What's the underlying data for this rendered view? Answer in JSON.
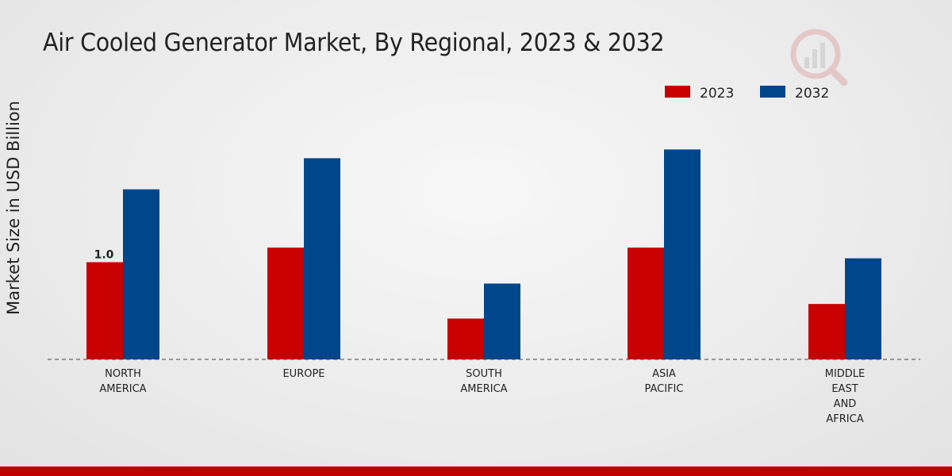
{
  "chart_data": {
    "type": "bar",
    "title": "Air Cooled Generator Market, By Regional, 2023 & 2032",
    "xlabel": "",
    "ylabel": "Market Size in USD Billion",
    "categories": [
      [
        "NORTH",
        "AMERICA"
      ],
      [
        "EUROPE"
      ],
      [
        "SOUTH",
        "AMERICA"
      ],
      [
        "ASIA",
        "PACIFIC"
      ],
      [
        "MIDDLE",
        "EAST",
        "AND",
        "AFRICA"
      ]
    ],
    "series": [
      {
        "name": "2023",
        "color": "#c80000",
        "values": [
          1.0,
          1.15,
          0.42,
          1.15,
          0.57
        ]
      },
      {
        "name": "2032",
        "color": "#00468b",
        "values": [
          1.75,
          2.07,
          0.78,
          2.16,
          1.04
        ]
      }
    ],
    "ylim": [
      0,
      2.8
    ],
    "data_labels": [
      {
        "series": 0,
        "index": 0,
        "text": "1.0"
      }
    ],
    "legend_position": "top-right",
    "grid": false
  }
}
